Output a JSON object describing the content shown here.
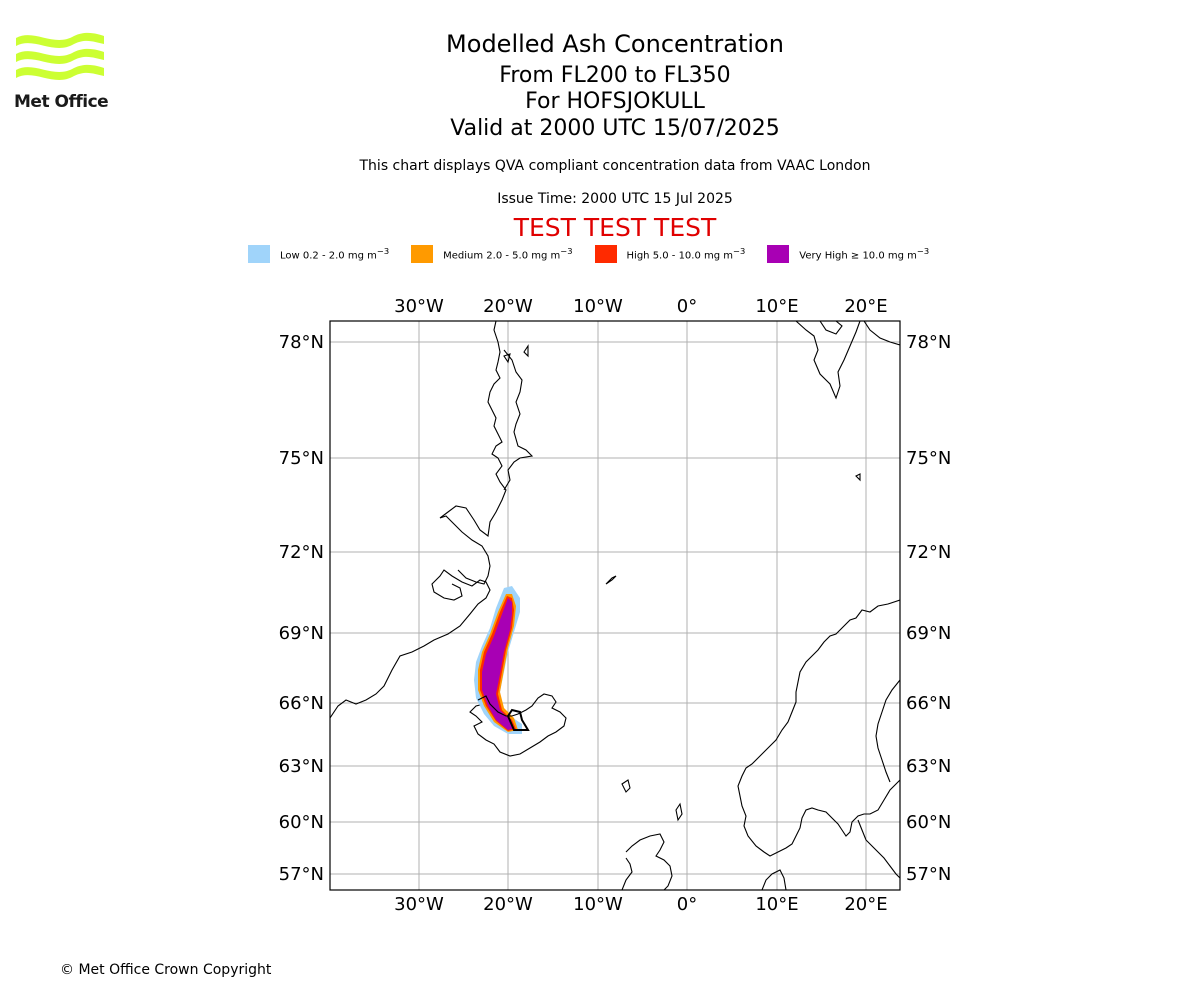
{
  "logo": {
    "text": "Met Office",
    "color": "#ccff33"
  },
  "header": {
    "title": "Modelled Ash Concentration",
    "levels": "From FL200 to FL350",
    "volcano": "For HOFSJOKULL",
    "valid": "Valid at 2000 UTC 15/07/2025",
    "description": "This chart displays QVA compliant concentration data from VAAC London",
    "issue_time": "Issue Time: 2000 UTC 15 Jul 2025",
    "test_banner": "TEST TEST TEST"
  },
  "legend": [
    {
      "label": "Low 0.2 - 2.0 mg m",
      "color": "#a0d4fa"
    },
    {
      "label": "Medium 2.0 - 5.0 mg m",
      "color": "#ff9a00"
    },
    {
      "label": "High 5.0 - 10.0 mg m",
      "color": "#ff2a00"
    },
    {
      "label": "Very High ≥ 10.0 mg m",
      "color": "#a800b4"
    }
  ],
  "legend_unit_exponent": "−3",
  "map": {
    "lon_ticks": [
      "30°W",
      "20°W",
      "10°W",
      "0°",
      "10°E",
      "20°E"
    ],
    "lat_ticks": [
      "78°N",
      "75°N",
      "72°N",
      "69°N",
      "66°N",
      "63°N",
      "60°N",
      "57°N"
    ],
    "grid": true
  },
  "copyright": "© Met Office Crown Copyright"
}
